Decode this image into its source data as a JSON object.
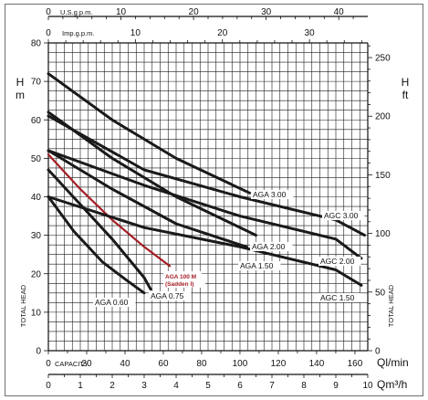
{
  "chart_data": {
    "type": "line",
    "title": "",
    "axes": {
      "left": {
        "label": "H",
        "unit": "m",
        "range": [
          0,
          80
        ],
        "ticks": [
          0,
          10,
          20,
          30,
          40,
          50,
          60,
          70,
          80
        ],
        "side_label": "TOTAL HEAD"
      },
      "right": {
        "label": "H",
        "unit": "ft",
        "range": [
          0,
          262.5
        ],
        "ticks": [
          0,
          50,
          100,
          150,
          200,
          250
        ],
        "side_label": "TOTAL HEAD"
      },
      "bottom_primary": {
        "label": "Ql/min",
        "prefix": "CAPACITY",
        "range": [
          0,
          166.7
        ],
        "ticks": [
          0,
          20,
          40,
          60,
          80,
          100,
          120,
          140,
          160
        ]
      },
      "bottom_secondary": {
        "label": "Qm³/h",
        "range": [
          0,
          10
        ],
        "ticks": [
          0,
          1,
          2,
          3,
          4,
          5,
          6,
          7,
          8,
          9,
          10
        ]
      },
      "top_outer": {
        "label": "U.S.g.p.m.",
        "range": [
          0,
          44
        ],
        "ticks": [
          0,
          10,
          20,
          30,
          40
        ]
      },
      "top_inner": {
        "label": "Imp.g.p.m.",
        "range": [
          0,
          36.7
        ],
        "ticks": [
          0,
          10,
          20,
          30
        ]
      }
    },
    "grid": true,
    "legend": "none",
    "series": [
      {
        "name": "AGA 0.60",
        "color": "#1a1a1a",
        "x": [
          0,
          0.8,
          1.7,
          2.5,
          3.0
        ],
        "y": [
          40,
          31,
          23,
          18,
          15
        ]
      },
      {
        "name": "AGA 0.75",
        "color": "#1a1a1a",
        "x": [
          0,
          1.0,
          2.0,
          3.0,
          3.2
        ],
        "y": [
          47,
          38,
          29,
          19,
          16
        ]
      },
      {
        "name": "AGA 100 M (Sadden I)",
        "color": "#a41e24",
        "x": [
          0,
          1.0,
          2.0,
          3.0,
          3.8
        ],
        "y": [
          51,
          42,
          34,
          27,
          22
        ]
      },
      {
        "name": "AGA 1.50",
        "color": "#1a1a1a",
        "x": [
          0,
          2.0,
          4.0,
          6.2
        ],
        "y": [
          52,
          42,
          33,
          27
        ]
      },
      {
        "name": "AGA 2.00",
        "color": "#1a1a1a",
        "x": [
          0,
          2.0,
          4.0,
          6.5
        ],
        "y": [
          62,
          50,
          40,
          30
        ]
      },
      {
        "name": "AGA 3.00",
        "color": "#1a1a1a",
        "x": [
          0,
          2.0,
          4.0,
          6.3
        ],
        "y": [
          72,
          60,
          50,
          41
        ]
      },
      {
        "name": "AGC 1.50",
        "color": "#1a1a1a",
        "x": [
          0,
          3.0,
          6.0,
          9.0,
          9.8
        ],
        "y": [
          40,
          32,
          27,
          21,
          17
        ]
      },
      {
        "name": "AGC 2.00",
        "color": "#1a1a1a",
        "x": [
          0,
          3.0,
          6.0,
          9.0,
          9.8
        ],
        "y": [
          52,
          43,
          35,
          29,
          24
        ]
      },
      {
        "name": "AGC 3.00",
        "color": "#1a1a1a",
        "x": [
          0,
          3.0,
          6.0,
          9.0,
          9.9
        ],
        "y": [
          61,
          47,
          40,
          34,
          30
        ]
      }
    ],
    "annotations": [
      {
        "text": "AGA 0.60",
        "series": "AGA 0.60"
      },
      {
        "text": "AGA 0.75",
        "series": "AGA 0.75"
      },
      {
        "text": "AGA 100 M",
        "series": "AGA 100 M (Sadden I)"
      },
      {
        "text": "(Sadden I)",
        "series": "AGA 100 M (Sadden I)"
      },
      {
        "text": "AGA 1.50",
        "series": "AGA 1.50"
      },
      {
        "text": "AGA 2.00",
        "series": "AGA 2.00"
      },
      {
        "text": "AGA 3.00",
        "series": "AGA 3.00"
      },
      {
        "text": "AGC 1.50",
        "series": "AGC 1.50"
      },
      {
        "text": "AGC 2.00",
        "series": "AGC 2.00"
      },
      {
        "text": "AGC 3.00",
        "series": "AGC 3.00"
      }
    ]
  }
}
